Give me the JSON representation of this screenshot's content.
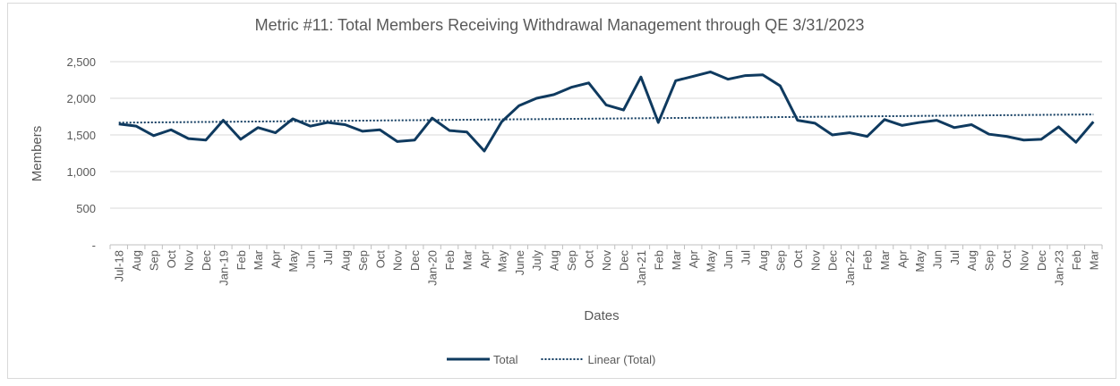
{
  "chart_data": {
    "type": "line",
    "title": "Metric #11: Total Members Receiving Withdrawal Management through QE 3/31/2023",
    "x_label": "Dates",
    "y_label": "Members",
    "categories": [
      "Jul-18",
      "Aug",
      "Sep",
      "Oct",
      "Nov",
      "Dec",
      "Jan-19",
      "Feb",
      "Mar",
      "Apr",
      "May",
      "Jun",
      "Jul",
      "Aug",
      "Sep",
      "Oct",
      "Nov",
      "Dec",
      "Jan-20",
      "Feb",
      "Mar",
      "Apr",
      "May",
      "June",
      "July",
      "Aug",
      "Sep",
      "Oct",
      "Nov",
      "Dec",
      "Jan-21",
      "Feb",
      "Mar",
      "Apr",
      "May",
      "Jun",
      "Jul",
      "Aug",
      "Sep",
      "Oct",
      "Nov",
      "Dec",
      "Jan-22",
      "Feb",
      "Mar",
      "Apr",
      "May",
      "Jun",
      "Jul",
      "Aug",
      "Sep",
      "Oct",
      "Nov",
      "Dec",
      "Jan-23",
      "Feb",
      "Mar"
    ],
    "series": [
      {
        "name": "Total",
        "color": "#0f3a5f",
        "values": [
          1650,
          1620,
          1490,
          1570,
          1450,
          1430,
          1700,
          1440,
          1600,
          1530,
          1720,
          1620,
          1670,
          1640,
          1550,
          1570,
          1410,
          1430,
          1730,
          1560,
          1540,
          1280,
          1680,
          1900,
          2000,
          2050,
          2150,
          2210,
          1910,
          1840,
          2290,
          1670,
          2240,
          2300,
          2360,
          2260,
          2310,
          2320,
          2170,
          1700,
          1660,
          1500,
          1530,
          1480,
          1710,
          1630,
          1670,
          1700,
          1600,
          1640,
          1510,
          1480,
          1430,
          1440,
          1610,
          1400,
          1680
        ]
      },
      {
        "name": "Linear (Total)",
        "color": "#0f3a5f",
        "trendline": "linear",
        "line_style": "dotted"
      }
    ],
    "ylim": [
      0,
      2500
    ],
    "yticks": [
      {
        "value": 0,
        "label": "-"
      },
      500,
      {
        "value": 1000,
        "label": "1,000"
      },
      {
        "value": 1500,
        "label": "1,500"
      },
      {
        "value": 2000,
        "label": "2,000"
      },
      {
        "value": 2500,
        "label": "2,500"
      }
    ],
    "grid": true,
    "legend": "bottom"
  }
}
